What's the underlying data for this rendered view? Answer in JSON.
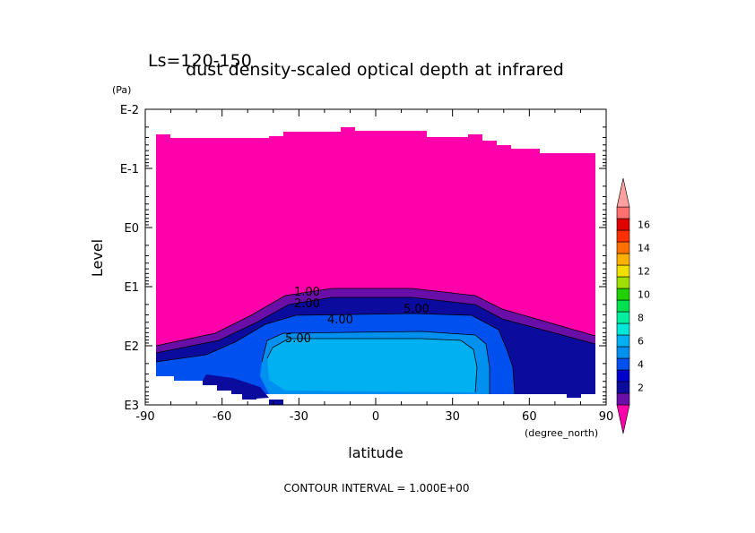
{
  "chart_data": {
    "type": "contour",
    "title_main": "dust density-scaled optical depth at infrared",
    "title_sub": "Ls=120-150",
    "xlabel": "latitude",
    "xunit": "(degree_north)",
    "ylabel": "Level",
    "yunit": "(Pa)",
    "x_ticks": [
      "-90",
      "-60",
      "-30",
      "0",
      "30",
      "60",
      "90"
    ],
    "y_ticks": [
      "E-2",
      "E-1",
      "E0",
      "E1",
      "E2",
      "E3"
    ],
    "xlim": [
      -90,
      90
    ],
    "ylim_log10_pa": [
      -2,
      3
    ],
    "y_scale": "log",
    "contour_labels": [
      "1.00",
      "2.00",
      "4.00",
      "5.00",
      "5.00"
    ],
    "footer": "CONTOUR INTERVAL = 1.000E+00",
    "colorbar": {
      "labels": [
        "2",
        "4",
        "6",
        "8",
        "10",
        "12",
        "14",
        "16"
      ],
      "colors": [
        "#ff00aa",
        "#6a0ea8",
        "#0b0b9e",
        "#0000cc",
        "#0050f0",
        "#0090f0",
        "#00b0f0",
        "#00e8d8",
        "#00f0a0",
        "#00e050",
        "#20d000",
        "#a0e000",
        "#f0e000",
        "#ffb000",
        "#ff7000",
        "#ff3000",
        "#e00000",
        "#ff7070",
        "#ffa0a0"
      ]
    }
  }
}
